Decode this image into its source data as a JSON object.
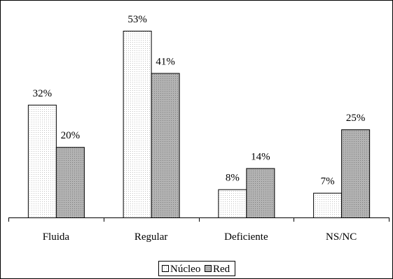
{
  "colors": {
    "nucleo_fill": "#ffffff",
    "nucleo_dot": "#c0c0c0",
    "red_fill": "#b3b3b3",
    "red_dot": "#7f7f7f"
  },
  "chart_data": {
    "type": "bar",
    "categories": [
      "Fluida",
      "Regular",
      "Deficiente",
      "NS/NC"
    ],
    "series": [
      {
        "name": "Núcleo",
        "values": [
          32,
          53,
          8,
          7
        ],
        "labels": [
          "32%",
          "53%",
          "8%",
          "7%"
        ]
      },
      {
        "name": "Red",
        "values": [
          20,
          41,
          14,
          25
        ],
        "labels": [
          "20%",
          "41%",
          "14%",
          "25%"
        ]
      }
    ],
    "ylim": [
      0,
      53
    ],
    "grid": false,
    "legend_position": "bottom-center"
  }
}
